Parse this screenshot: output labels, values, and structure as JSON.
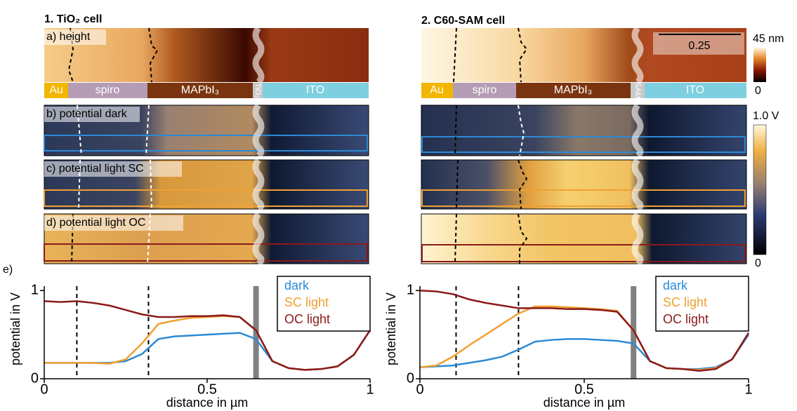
{
  "figure": {
    "left": {
      "title": "1. TiO₂ cell",
      "panel_labels": [
        "a) height",
        "b) potential dark",
        "c) potential light SC",
        "d) potential light OC"
      ],
      "layers": [
        "Au",
        "spiro",
        "MAPbI₃",
        "TiO₂",
        "ITO"
      ]
    },
    "right": {
      "title": "2. C60-SAM cell",
      "layers": [
        "Au",
        "spiro",
        "MAPbI₃",
        "SAM",
        "ITO"
      ],
      "scale_bar": "0.25"
    },
    "height_colorbar": {
      "top": "45 nm",
      "bottom": "0"
    },
    "potential_colorbar": {
      "top": "1.0 V",
      "bottom": "0"
    },
    "chart_label": "e)"
  },
  "chart_data": [
    {
      "type": "line",
      "xlabel": "distance in µm",
      "ylabel": "potential in V",
      "xlim": [
        0,
        1
      ],
      "ylim": [
        0,
        1.05
      ],
      "xticks": [
        0,
        0.5,
        1
      ],
      "yticks": [
        0,
        1
      ],
      "legend": "upper right",
      "vlines": [
        0.1,
        0.32
      ],
      "band": 0.65,
      "x": [
        0,
        0.05,
        0.1,
        0.15,
        0.2,
        0.25,
        0.3,
        0.35,
        0.4,
        0.45,
        0.5,
        0.55,
        0.6,
        0.65,
        0.7,
        0.75,
        0.8,
        0.85,
        0.9,
        0.95,
        1
      ],
      "series": [
        {
          "name": "dark",
          "color": "#2b8ad6",
          "values": [
            0.18,
            0.18,
            0.18,
            0.18,
            0.18,
            0.2,
            0.28,
            0.45,
            0.48,
            0.49,
            0.5,
            0.51,
            0.52,
            0.45,
            0.2,
            0.12,
            0.1,
            0.11,
            0.14,
            0.27,
            0.55
          ]
        },
        {
          "name": "SC light",
          "color": "#f0a030",
          "values": [
            0.18,
            0.18,
            0.18,
            0.18,
            0.17,
            0.22,
            0.4,
            0.62,
            0.66,
            0.69,
            0.7,
            0.71,
            0.7,
            0.55,
            0.2,
            0.12,
            0.1,
            0.11,
            0.14,
            0.27,
            0.55
          ]
        },
        {
          "name": "OC light",
          "color": "#8b1a1a",
          "values": [
            0.88,
            0.87,
            0.88,
            0.86,
            0.83,
            0.78,
            0.73,
            0.7,
            0.7,
            0.71,
            0.71,
            0.72,
            0.7,
            0.55,
            0.2,
            0.12,
            0.1,
            0.11,
            0.14,
            0.27,
            0.55
          ]
        }
      ]
    },
    {
      "type": "line",
      "xlabel": "distance in µm",
      "ylabel": "potential in V",
      "xlim": [
        0,
        1
      ],
      "ylim": [
        0,
        1.05
      ],
      "xticks": [
        0,
        0.5,
        1
      ],
      "yticks": [
        0,
        1
      ],
      "legend": "upper right",
      "vlines": [
        0.11,
        0.3
      ],
      "band": 0.65,
      "x": [
        0,
        0.05,
        0.1,
        0.15,
        0.2,
        0.25,
        0.3,
        0.35,
        0.4,
        0.45,
        0.5,
        0.55,
        0.6,
        0.65,
        0.7,
        0.75,
        0.8,
        0.85,
        0.9,
        0.95,
        1
      ],
      "series": [
        {
          "name": "dark",
          "color": "#2b8ad6",
          "values": [
            0.13,
            0.14,
            0.15,
            0.18,
            0.21,
            0.25,
            0.33,
            0.42,
            0.44,
            0.45,
            0.45,
            0.44,
            0.43,
            0.4,
            0.2,
            0.12,
            0.11,
            0.11,
            0.13,
            0.22,
            0.5
          ]
        },
        {
          "name": "SC light",
          "color": "#f0a030",
          "values": [
            0.13,
            0.15,
            0.25,
            0.38,
            0.5,
            0.62,
            0.74,
            0.82,
            0.82,
            0.81,
            0.8,
            0.79,
            0.77,
            0.55,
            0.2,
            0.12,
            0.11,
            0.1,
            0.12,
            0.22,
            0.52
          ]
        },
        {
          "name": "OC light",
          "color": "#8b1a1a",
          "values": [
            1.0,
            0.99,
            0.96,
            0.9,
            0.86,
            0.83,
            0.8,
            0.8,
            0.8,
            0.79,
            0.79,
            0.78,
            0.76,
            0.55,
            0.2,
            0.12,
            0.11,
            0.09,
            0.11,
            0.22,
            0.52
          ]
        }
      ]
    }
  ]
}
